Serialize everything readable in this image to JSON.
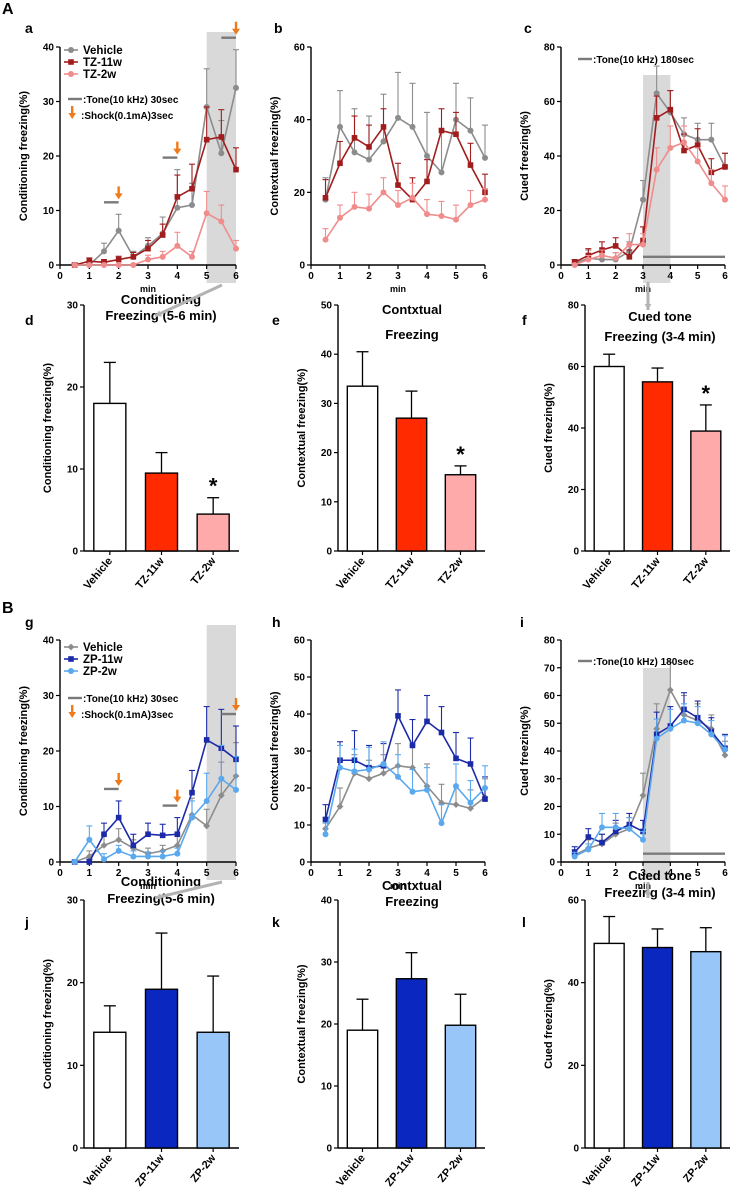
{
  "section_labels": [
    "A",
    "B"
  ],
  "colors": {
    "vehicle": "#8c8c8c",
    "tz11w": "#a11d1d",
    "tz2w": "#f08c8c",
    "tz11w_bar": "#ff2a00",
    "tz2w_bar": "#ffaaaa",
    "zp11w": "#1c2aa8",
    "zp2w": "#5aa8ee",
    "zp11w_bar": "#0a28bf",
    "zp2w_bar": "#99c6f8",
    "shade": "#d9d9d9",
    "arrow": "#f07a1a",
    "connector": "#b3b3b3"
  },
  "annotations": {
    "tone30": ":Tone(10 kHz) 30sec",
    "shock": ":Shock(0.1mA)3sec",
    "tone180": ":Tone(10 kHz) 180sec"
  },
  "chart_data": [
    {
      "id": "a",
      "type": "line",
      "xlabel": "min",
      "ylabel": "Conditioning freezing(%)",
      "xlim": [
        0,
        6
      ],
      "ylim": [
        0,
        40
      ],
      "xticks": [
        0,
        1,
        2,
        3,
        4,
        5,
        6
      ],
      "yticks": [
        0,
        10,
        20,
        30,
        40
      ],
      "x": [
        0.5,
        1,
        1.5,
        2,
        2.5,
        3,
        3.5,
        4,
        4.5,
        5,
        5.5,
        6
      ],
      "shade": [
        5,
        6
      ],
      "tone_bars": [
        [
          1.5,
          2
        ],
        [
          3.5,
          4
        ],
        [
          5.5,
          6
        ]
      ],
      "shock_arrows": [
        2,
        4,
        6
      ],
      "legend": [
        "Vehicle",
        "TZ-11w",
        "TZ-2w"
      ],
      "series": [
        {
          "name": "Vehicle",
          "color_key": "vehicle",
          "marker": "circle",
          "values": [
            0,
            0,
            2.5,
            6.3,
            1.5,
            3.5,
            5.8,
            10.5,
            11,
            29,
            20.5,
            32.5
          ],
          "err": [
            0.3,
            0.3,
            1.5,
            3,
            1,
            1.5,
            3,
            7,
            4,
            7,
            6,
            7
          ]
        },
        {
          "name": "TZ-11w",
          "color_key": "tz11w",
          "marker": "square",
          "values": [
            0,
            0.7,
            0.5,
            1,
            1.5,
            3,
            5.5,
            12.5,
            14,
            23,
            23.5,
            17.5
          ],
          "err": [
            0.3,
            0.6,
            0.5,
            0.6,
            0.8,
            1.5,
            2,
            4,
            4.5,
            6,
            5,
            4
          ]
        },
        {
          "name": "TZ-2w",
          "color_key": "tz2w",
          "marker": "circle",
          "values": [
            0,
            0,
            0,
            0,
            0,
            1,
            1.5,
            3.5,
            1.5,
            9.5,
            8,
            3
          ],
          "err": [
            0.1,
            0.1,
            0.1,
            0.1,
            0.2,
            0.8,
            1,
            2.5,
            1,
            4,
            3,
            1.5
          ]
        }
      ]
    },
    {
      "id": "b",
      "type": "line",
      "xlabel": "min",
      "ylabel": "Contextual freezing(%)",
      "xlim": [
        0,
        6
      ],
      "ylim": [
        0,
        60
      ],
      "xticks": [
        0,
        1,
        2,
        3,
        4,
        5,
        6
      ],
      "yticks": [
        0,
        20,
        40,
        60
      ],
      "x": [
        0.5,
        1,
        1.5,
        2,
        2.5,
        3,
        3.5,
        4,
        4.5,
        5,
        5.5,
        6
      ],
      "series": [
        {
          "name": "Vehicle",
          "color_key": "vehicle",
          "marker": "circle",
          "values": [
            18,
            38,
            31,
            29,
            34,
            40.5,
            38,
            30,
            25.5,
            40,
            37,
            29.5
          ],
          "err": [
            6,
            10,
            12,
            12,
            13,
            12.5,
            12,
            12,
            12,
            10,
            9,
            9
          ]
        },
        {
          "name": "TZ-11w",
          "color_key": "tz11w",
          "marker": "square",
          "values": [
            18.5,
            28,
            35,
            32.5,
            38,
            22,
            18,
            23,
            37,
            36,
            27.5,
            20
          ],
          "err": [
            5,
            6,
            6,
            6,
            5,
            6,
            6,
            6,
            6,
            6,
            6,
            5
          ]
        },
        {
          "name": "TZ-2w",
          "color_key": "tz2w",
          "marker": "circle",
          "values": [
            7,
            13,
            16,
            15.5,
            20,
            16.5,
            18.5,
            14,
            13.5,
            12.5,
            16.5,
            18
          ],
          "err": [
            3,
            3.5,
            4,
            4,
            4,
            4,
            4,
            4,
            4,
            4,
            4,
            3
          ]
        }
      ]
    },
    {
      "id": "c",
      "type": "line",
      "xlabel": "min",
      "ylabel": "Cued freezing(%)",
      "xlim": [
        0,
        6
      ],
      "ylim": [
        0,
        80
      ],
      "xticks": [
        0,
        1,
        2,
        3,
        4,
        5,
        6
      ],
      "yticks": [
        0,
        20,
        40,
        60,
        80
      ],
      "x": [
        0.5,
        1,
        1.5,
        2,
        2.5,
        3,
        3.5,
        4,
        4.5,
        5,
        5.5,
        6
      ],
      "shade": [
        3,
        4
      ],
      "tone_line": [
        3,
        6
      ],
      "tone_line_y": 3,
      "series": [
        {
          "name": "Vehicle",
          "color_key": "vehicle",
          "marker": "circle",
          "values": [
            0.5,
            2.5,
            2,
            2,
            5,
            24,
            63,
            56,
            48,
            46,
            46,
            36
          ],
          "err": [
            1,
            3,
            2.5,
            2.5,
            3.5,
            7,
            10,
            8,
            6,
            6,
            6,
            5
          ]
        },
        {
          "name": "TZ-11w",
          "color_key": "tz11w",
          "marker": "square",
          "values": [
            1,
            3.5,
            5.5,
            7,
            3,
            9,
            54,
            57,
            42,
            44,
            34,
            36
          ],
          "err": [
            1,
            2.5,
            3,
            3,
            2.5,
            5,
            8,
            7,
            6,
            6,
            5,
            5
          ]
        },
        {
          "name": "TZ-2w",
          "color_key": "tz2w",
          "marker": "circle",
          "values": [
            0,
            2,
            3.5,
            2.5,
            7.5,
            7.5,
            35,
            43,
            45,
            38,
            30,
            24
          ],
          "err": [
            0.5,
            1.5,
            2,
            2,
            4,
            4,
            8,
            8,
            6,
            5,
            5,
            5
          ]
        }
      ]
    },
    {
      "id": "d",
      "type": "bar",
      "ylabel": "Conditioning freezing(%)",
      "ylim": [
        0,
        30
      ],
      "yticks": [
        0,
        10,
        20,
        30
      ],
      "categories": [
        "Vehicle",
        "TZ-11w",
        "TZ-2w"
      ],
      "values": [
        18,
        9.5,
        4.5
      ],
      "err": [
        5,
        2.5,
        2
      ],
      "bar_color_keys": [
        null,
        "tz11w_bar",
        "tz2w_bar"
      ],
      "star_index": 2,
      "star": "*"
    },
    {
      "id": "e",
      "type": "bar",
      "ylabel": "Contextual freezing(%)",
      "ylim": [
        0,
        50
      ],
      "yticks": [
        0,
        10,
        20,
        30,
        40,
        50
      ],
      "categories": [
        "Vehicle",
        "TZ-11w",
        "TZ-2w"
      ],
      "values": [
        33.5,
        27,
        15.5
      ],
      "err": [
        7,
        5.5,
        1.8
      ],
      "bar_color_keys": [
        null,
        "tz11w_bar",
        "tz2w_bar"
      ],
      "star_index": 2,
      "star": "*"
    },
    {
      "id": "f",
      "type": "bar",
      "ylabel": "Cued freezing(%)",
      "ylim": [
        0,
        80
      ],
      "yticks": [
        0,
        20,
        40,
        60,
        80
      ],
      "categories": [
        "Vehicle",
        "TZ-11w",
        "TZ-2w"
      ],
      "values": [
        60,
        55,
        39
      ],
      "err": [
        4,
        4.5,
        8.5
      ],
      "bar_color_keys": [
        null,
        "tz11w_bar",
        "tz2w_bar"
      ],
      "star_index": 2,
      "star": "*"
    },
    {
      "id": "g",
      "type": "line",
      "xlabel": "min",
      "ylabel": "Conditioning freezing(%)",
      "xlim": [
        0,
        6
      ],
      "ylim": [
        0,
        40
      ],
      "xticks": [
        0,
        1,
        2,
        3,
        4,
        5,
        6
      ],
      "yticks": [
        0,
        10,
        20,
        30,
        40
      ],
      "x": [
        0.5,
        1,
        1.5,
        2,
        2.5,
        3,
        3.5,
        4,
        4.5,
        5,
        5.5,
        6
      ],
      "shade": [
        5,
        6
      ],
      "tone_bars": [
        [
          1.5,
          2
        ],
        [
          3.5,
          4
        ],
        [
          5.5,
          6
        ]
      ],
      "shock_arrows": [
        2,
        4,
        6
      ],
      "legend": [
        "Vehicle",
        "ZP-11w",
        "ZP-2w"
      ],
      "series": [
        {
          "name": "Vehicle",
          "color_key": "vehicle",
          "marker": "diamond",
          "values": [
            0,
            1,
            3,
            4,
            2.5,
            1.5,
            2,
            3,
            8.5,
            6.5,
            12,
            15.5
          ],
          "err": [
            0.3,
            1,
            2,
            2,
            1.5,
            1,
            1,
            2,
            3,
            3,
            6,
            6
          ]
        },
        {
          "name": "ZP-11w",
          "color_key": "zp11w",
          "marker": "square",
          "values": [
            0,
            0,
            5,
            8,
            3,
            5,
            4.8,
            5,
            12.5,
            22,
            20.5,
            18.5
          ],
          "err": [
            0.3,
            0.5,
            2,
            3,
            2,
            2,
            2,
            3,
            4,
            6,
            7,
            6
          ]
        },
        {
          "name": "ZP-2w",
          "color_key": "zp2w",
          "marker": "circle",
          "values": [
            0,
            4,
            0.5,
            2,
            1,
            1,
            1,
            1.5,
            8,
            11,
            15,
            13
          ],
          "err": [
            0.2,
            2.5,
            1,
            1,
            1,
            0.8,
            1,
            1,
            3,
            5,
            6,
            6
          ]
        }
      ]
    },
    {
      "id": "h",
      "type": "line",
      "xlabel": "min",
      "ylabel": "Contextual freezing(%)",
      "xlim": [
        0,
        6
      ],
      "ylim": [
        0,
        60
      ],
      "xticks": [
        0,
        1,
        2,
        3,
        4,
        5,
        6
      ],
      "yticks": [
        0,
        10,
        20,
        30,
        40,
        50,
        60
      ],
      "x": [
        0.5,
        1,
        1.5,
        2,
        2.5,
        3,
        3.5,
        4,
        4.5,
        5,
        5.5,
        6
      ],
      "series": [
        {
          "name": "Vehicle",
          "color_key": "vehicle",
          "marker": "diamond",
          "values": [
            9,
            15,
            24,
            22.5,
            24,
            26,
            25.5,
            20.5,
            16,
            15.5,
            14.5,
            17.5
          ],
          "err": [
            3,
            5,
            5,
            5,
            5,
            6,
            6,
            6,
            5,
            5,
            5,
            5
          ]
        },
        {
          "name": "ZP-11w",
          "color_key": "zp11w",
          "marker": "square",
          "values": [
            11.5,
            27.5,
            27.5,
            25.5,
            26,
            39.5,
            31.5,
            38,
            35,
            28,
            26.5,
            17
          ],
          "err": [
            4,
            5,
            8,
            6,
            6,
            7,
            7,
            7,
            7,
            7,
            7,
            6
          ]
        },
        {
          "name": "ZP-2w",
          "color_key": "zp2w",
          "marker": "circle",
          "values": [
            7.5,
            25.5,
            24.5,
            25,
            26.5,
            23,
            19,
            19.5,
            10.5,
            20.5,
            16,
            20
          ],
          "err": [
            3,
            6,
            6,
            6,
            6,
            6,
            6,
            6,
            5,
            6,
            6,
            6
          ]
        }
      ]
    },
    {
      "id": "i",
      "type": "line",
      "xlabel": "min",
      "ylabel": "Cued freezing(%)",
      "xlim": [
        0,
        6
      ],
      "ylim": [
        0,
        80
      ],
      "xticks": [
        0,
        1,
        2,
        3,
        4,
        5,
        6
      ],
      "yticks": [
        0,
        10,
        20,
        30,
        40,
        50,
        60,
        70,
        80
      ],
      "x": [
        0.5,
        1,
        1.5,
        2,
        2.5,
        3,
        3.5,
        4,
        4.5,
        5,
        5.5,
        6
      ],
      "shade": [
        3,
        4
      ],
      "tone_line": [
        3,
        6
      ],
      "tone_line_y": 3,
      "series": [
        {
          "name": "Vehicle",
          "color_key": "vehicle",
          "marker": "diamond",
          "values": [
            2.5,
            5,
            6.5,
            10,
            12,
            24,
            48,
            62,
            53,
            51,
            48,
            38.5
          ],
          "err": [
            2,
            3,
            3.5,
            4,
            4,
            8,
            9,
            10,
            7,
            6,
            5,
            5
          ]
        },
        {
          "name": "ZP-11w",
          "color_key": "zp11w",
          "marker": "square",
          "values": [
            3.5,
            9,
            7,
            11,
            13.5,
            11,
            46,
            49,
            55,
            52,
            47,
            41
          ],
          "err": [
            2,
            3,
            3,
            4,
            4,
            4,
            8,
            7,
            6,
            6,
            5,
            5
          ]
        },
        {
          "name": "ZP-2w",
          "color_key": "zp2w",
          "marker": "circle",
          "values": [
            2,
            4.5,
            12.5,
            12.5,
            12,
            8,
            44.5,
            48,
            51,
            50,
            46,
            40.5
          ],
          "err": [
            1.5,
            2,
            5,
            5,
            4,
            3,
            7,
            7,
            6,
            6,
            5,
            5
          ]
        }
      ]
    },
    {
      "id": "j",
      "type": "bar",
      "ylabel": "Conditioning freezing(%)",
      "ylim": [
        0,
        30
      ],
      "yticks": [
        0,
        10,
        20,
        30
      ],
      "categories": [
        "Vehicle",
        "ZP-11w",
        "ZP-2w"
      ],
      "values": [
        14,
        19.2,
        14
      ],
      "err": [
        3.2,
        6.8,
        6.8
      ],
      "bar_color_keys": [
        null,
        "zp11w_bar",
        "zp2w_bar"
      ]
    },
    {
      "id": "k",
      "type": "bar",
      "ylabel": "Contextual freezing(%)",
      "ylim": [
        0,
        40
      ],
      "yticks": [
        0,
        10,
        20,
        30,
        40
      ],
      "categories": [
        "Vehicle",
        "ZP-11w",
        "ZP-2w"
      ],
      "values": [
        19,
        27.3,
        19.8
      ],
      "err": [
        5,
        4.2,
        5
      ],
      "bar_color_keys": [
        null,
        "zp11w_bar",
        "zp2w_bar"
      ]
    },
    {
      "id": "l",
      "type": "bar",
      "ylabel": "Cued freezing(%)",
      "ylim": [
        0,
        60
      ],
      "yticks": [
        0,
        20,
        40,
        60
      ],
      "categories": [
        "Vehicle",
        "ZP-11w",
        "ZP-2w"
      ],
      "values": [
        49.5,
        48.5,
        47.5
      ],
      "err": [
        6.5,
        4.5,
        5.8
      ],
      "bar_color_keys": [
        null,
        "zp11w_bar",
        "zp2w_bar"
      ]
    }
  ],
  "bar_titles": {
    "d": [
      "Conditioning",
      "Freezing (5-6 min)"
    ],
    "e": [
      "Contxtual",
      "Freezing"
    ],
    "f": [
      "Cued tone",
      "Freezing (3-4 min)"
    ],
    "j": [
      "Conditioning",
      "Freezing(5-6 min)"
    ],
    "k": [
      "Contxtual",
      "Freezing"
    ],
    "l": [
      "Cued tone",
      "Freezing (3-4 min)"
    ]
  }
}
